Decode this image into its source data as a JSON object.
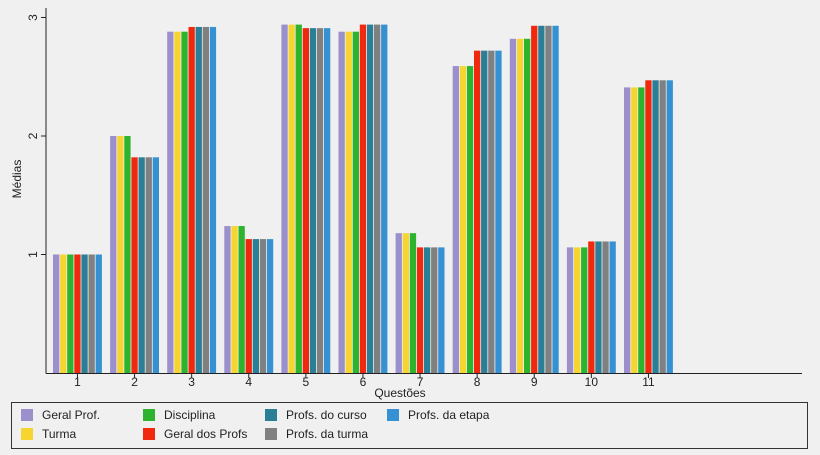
{
  "chart_data": {
    "type": "bar",
    "xlabel": "Questões",
    "ylabel": "Médias",
    "ylim": [
      0.0,
      3.08
    ],
    "yticks": [
      1,
      2,
      3
    ],
    "grid": false,
    "legend_position": "bottom",
    "categories": [
      "1",
      "2",
      "3",
      "4",
      "5",
      "6",
      "7",
      "8",
      "9",
      "10",
      "11"
    ],
    "series": [
      {
        "name": "Geral Prof.",
        "color": "#9b8fcc",
        "values": [
          1.0,
          2.0,
          2.88,
          1.24,
          2.94,
          2.88,
          1.18,
          2.59,
          2.82,
          1.06,
          2.41
        ]
      },
      {
        "name": "Turma",
        "color": "#f7d531",
        "values": [
          1.0,
          2.0,
          2.88,
          1.24,
          2.94,
          2.88,
          1.18,
          2.59,
          2.82,
          1.06,
          2.41
        ]
      },
      {
        "name": "Disciplina",
        "color": "#2db32d",
        "values": [
          1.0,
          2.0,
          2.88,
          1.24,
          2.94,
          2.88,
          1.18,
          2.59,
          2.82,
          1.06,
          2.41
        ]
      },
      {
        "name": "Geral dos Profs",
        "color": "#f0280e",
        "values": [
          1.0,
          1.82,
          2.92,
          1.13,
          2.91,
          2.94,
          1.06,
          2.72,
          2.93,
          1.11,
          2.47
        ]
      },
      {
        "name": "Profs. do curso",
        "color": "#2a7f97",
        "values": [
          1.0,
          1.82,
          2.92,
          1.13,
          2.91,
          2.94,
          1.06,
          2.72,
          2.93,
          1.11,
          2.47
        ]
      },
      {
        "name": "Profs. da turma",
        "color": "#808080",
        "values": [
          1.0,
          1.82,
          2.92,
          1.13,
          2.91,
          2.94,
          1.06,
          2.72,
          2.93,
          1.11,
          2.47
        ]
      },
      {
        "name": "Profs. da etapa",
        "color": "#3591d1",
        "values": [
          1.0,
          1.82,
          2.92,
          1.13,
          2.91,
          2.94,
          1.06,
          2.72,
          2.93,
          1.11,
          2.47
        ]
      }
    ]
  }
}
